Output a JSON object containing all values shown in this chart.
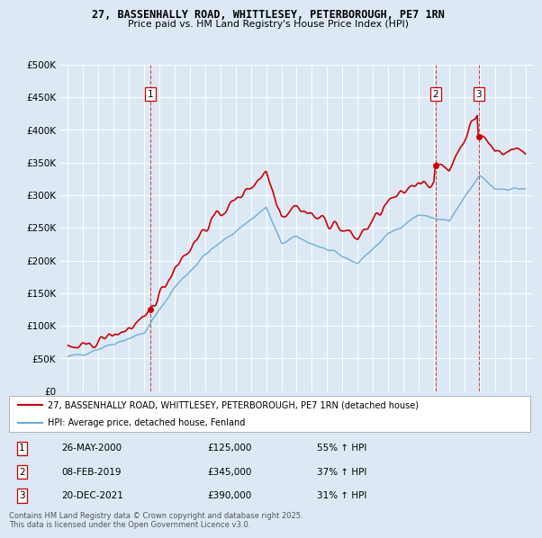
{
  "title_line1": "27, BASSENHALLY ROAD, WHITTLESEY, PETERBOROUGH, PE7 1RN",
  "title_line2": "Price paid vs. HM Land Registry's House Price Index (HPI)",
  "background_color": "#dce9f5",
  "sale_prices": [
    125000,
    345000,
    390000
  ],
  "sale_years_float": [
    2000.4,
    2019.1,
    2021.95
  ],
  "sale_labels": [
    "1",
    "2",
    "3"
  ],
  "sale_info": [
    {
      "label": "1",
      "date": "26-MAY-2000",
      "price": "£125,000",
      "pct": "55% ↑ HPI"
    },
    {
      "label": "2",
      "date": "08-FEB-2019",
      "price": "£345,000",
      "pct": "37% ↑ HPI"
    },
    {
      "label": "3",
      "date": "20-DEC-2021",
      "price": "£390,000",
      "pct": "31% ↑ HPI"
    }
  ],
  "legend_line1": "27, BASSENHALLY ROAD, WHITTLESEY, PETERBOROUGH, PE7 1RN (detached house)",
  "legend_line2": "HPI: Average price, detached house, Fenland",
  "footer": "Contains HM Land Registry data © Crown copyright and database right 2025.\nThis data is licensed under the Open Government Licence v3.0.",
  "hpi_color": "#6baed6",
  "price_color": "#cc0000",
  "vline_color": "#cc0000",
  "ylim": [
    0,
    500000
  ],
  "yticks": [
    0,
    50000,
    100000,
    150000,
    200000,
    250000,
    300000,
    350000,
    400000,
    450000,
    500000
  ],
  "xmin": 1994.5,
  "xmax": 2025.5
}
